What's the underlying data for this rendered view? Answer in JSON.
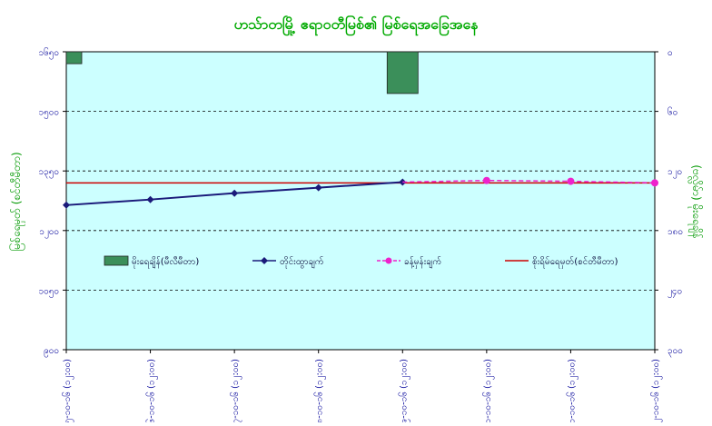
{
  "chart_data": {
    "type": "line",
    "title": "ဟသ်ာတမြို့ ဧရာဝတီမြစ်၏ မြစ်ရေအခြေအနေ",
    "ylabel_left": "မြစ်ရေမှတ် (စင်တီမီတာ)",
    "ylabel_right": "(ဗလ္လိမ်ာ) မိုးရေချိန်",
    "categories": [
      "၅-၁၀-၁၆ (၁၂:၀၀)",
      "၆-၁၀-၁၆ (၁၂:၀၀)",
      "၇-၁၀-၁၆ (၁၂:၀၀)",
      "၈-၁၀-၁၆ (၁၂:၀၀)",
      "၉-၁၀-၁၆ (၁၂:၀၀)",
      "၁၀-၁၀-၁၆ (၁၂:၀၀)",
      "၁၁-၁၀-၁၆ (၁၂:၀၀)",
      "၁၂-၁၀-၁၆ (၁၂:၀၀)"
    ],
    "y_left": {
      "min": 900,
      "max": 1650,
      "ticks": [
        900,
        1050,
        1200,
        1350,
        1500,
        1650
      ],
      "tick_labels": [
        "၉၀၀",
        "၁၀၅၀",
        "၁၂၀၀",
        "၁၃၅၀",
        "၁၅၀၀",
        "၁၆၅၀"
      ]
    },
    "y_right": {
      "min": 0,
      "max": 300,
      "reversed": true,
      "ticks": [
        0,
        60,
        120,
        180,
        240,
        300
      ],
      "tick_labels": [
        "၀",
        "၆၀",
        "၁၂၀",
        "၁၈၀",
        "၂၄၀",
        "၃၀၀"
      ]
    },
    "series": [
      {
        "name": "မိုးရေချိန်(မီလီမီတာ)",
        "kind": "bar",
        "axis": "right",
        "color": "#3b8f5a",
        "values": [
          12,
          null,
          null,
          null,
          42,
          null,
          null,
          null
        ]
      },
      {
        "name": "တိုင်းထွာချက်",
        "kind": "line",
        "axis": "left",
        "color": "#1a1a7a",
        "values": [
          1264,
          1278,
          1294,
          1308,
          1322,
          null,
          null,
          null
        ]
      },
      {
        "name": "ခန့်မှန်းချက်",
        "kind": "line-dashed",
        "axis": "left",
        "color": "#ee22cc",
        "values": [
          null,
          null,
          null,
          null,
          1322,
          1326,
          1324,
          1320
        ]
      },
      {
        "name": "စိုးရိမ်ရေမှတ်(စင်တီမီတာ)",
        "kind": "hline",
        "axis": "left",
        "color": "#cc0000",
        "value": 1320
      }
    ],
    "grid": true,
    "legend_position": "middle-left"
  },
  "colors": {
    "plot_bg": "#ccffff",
    "title": "#00aa00",
    "axis_label": "#009900",
    "tick": "#000099"
  }
}
